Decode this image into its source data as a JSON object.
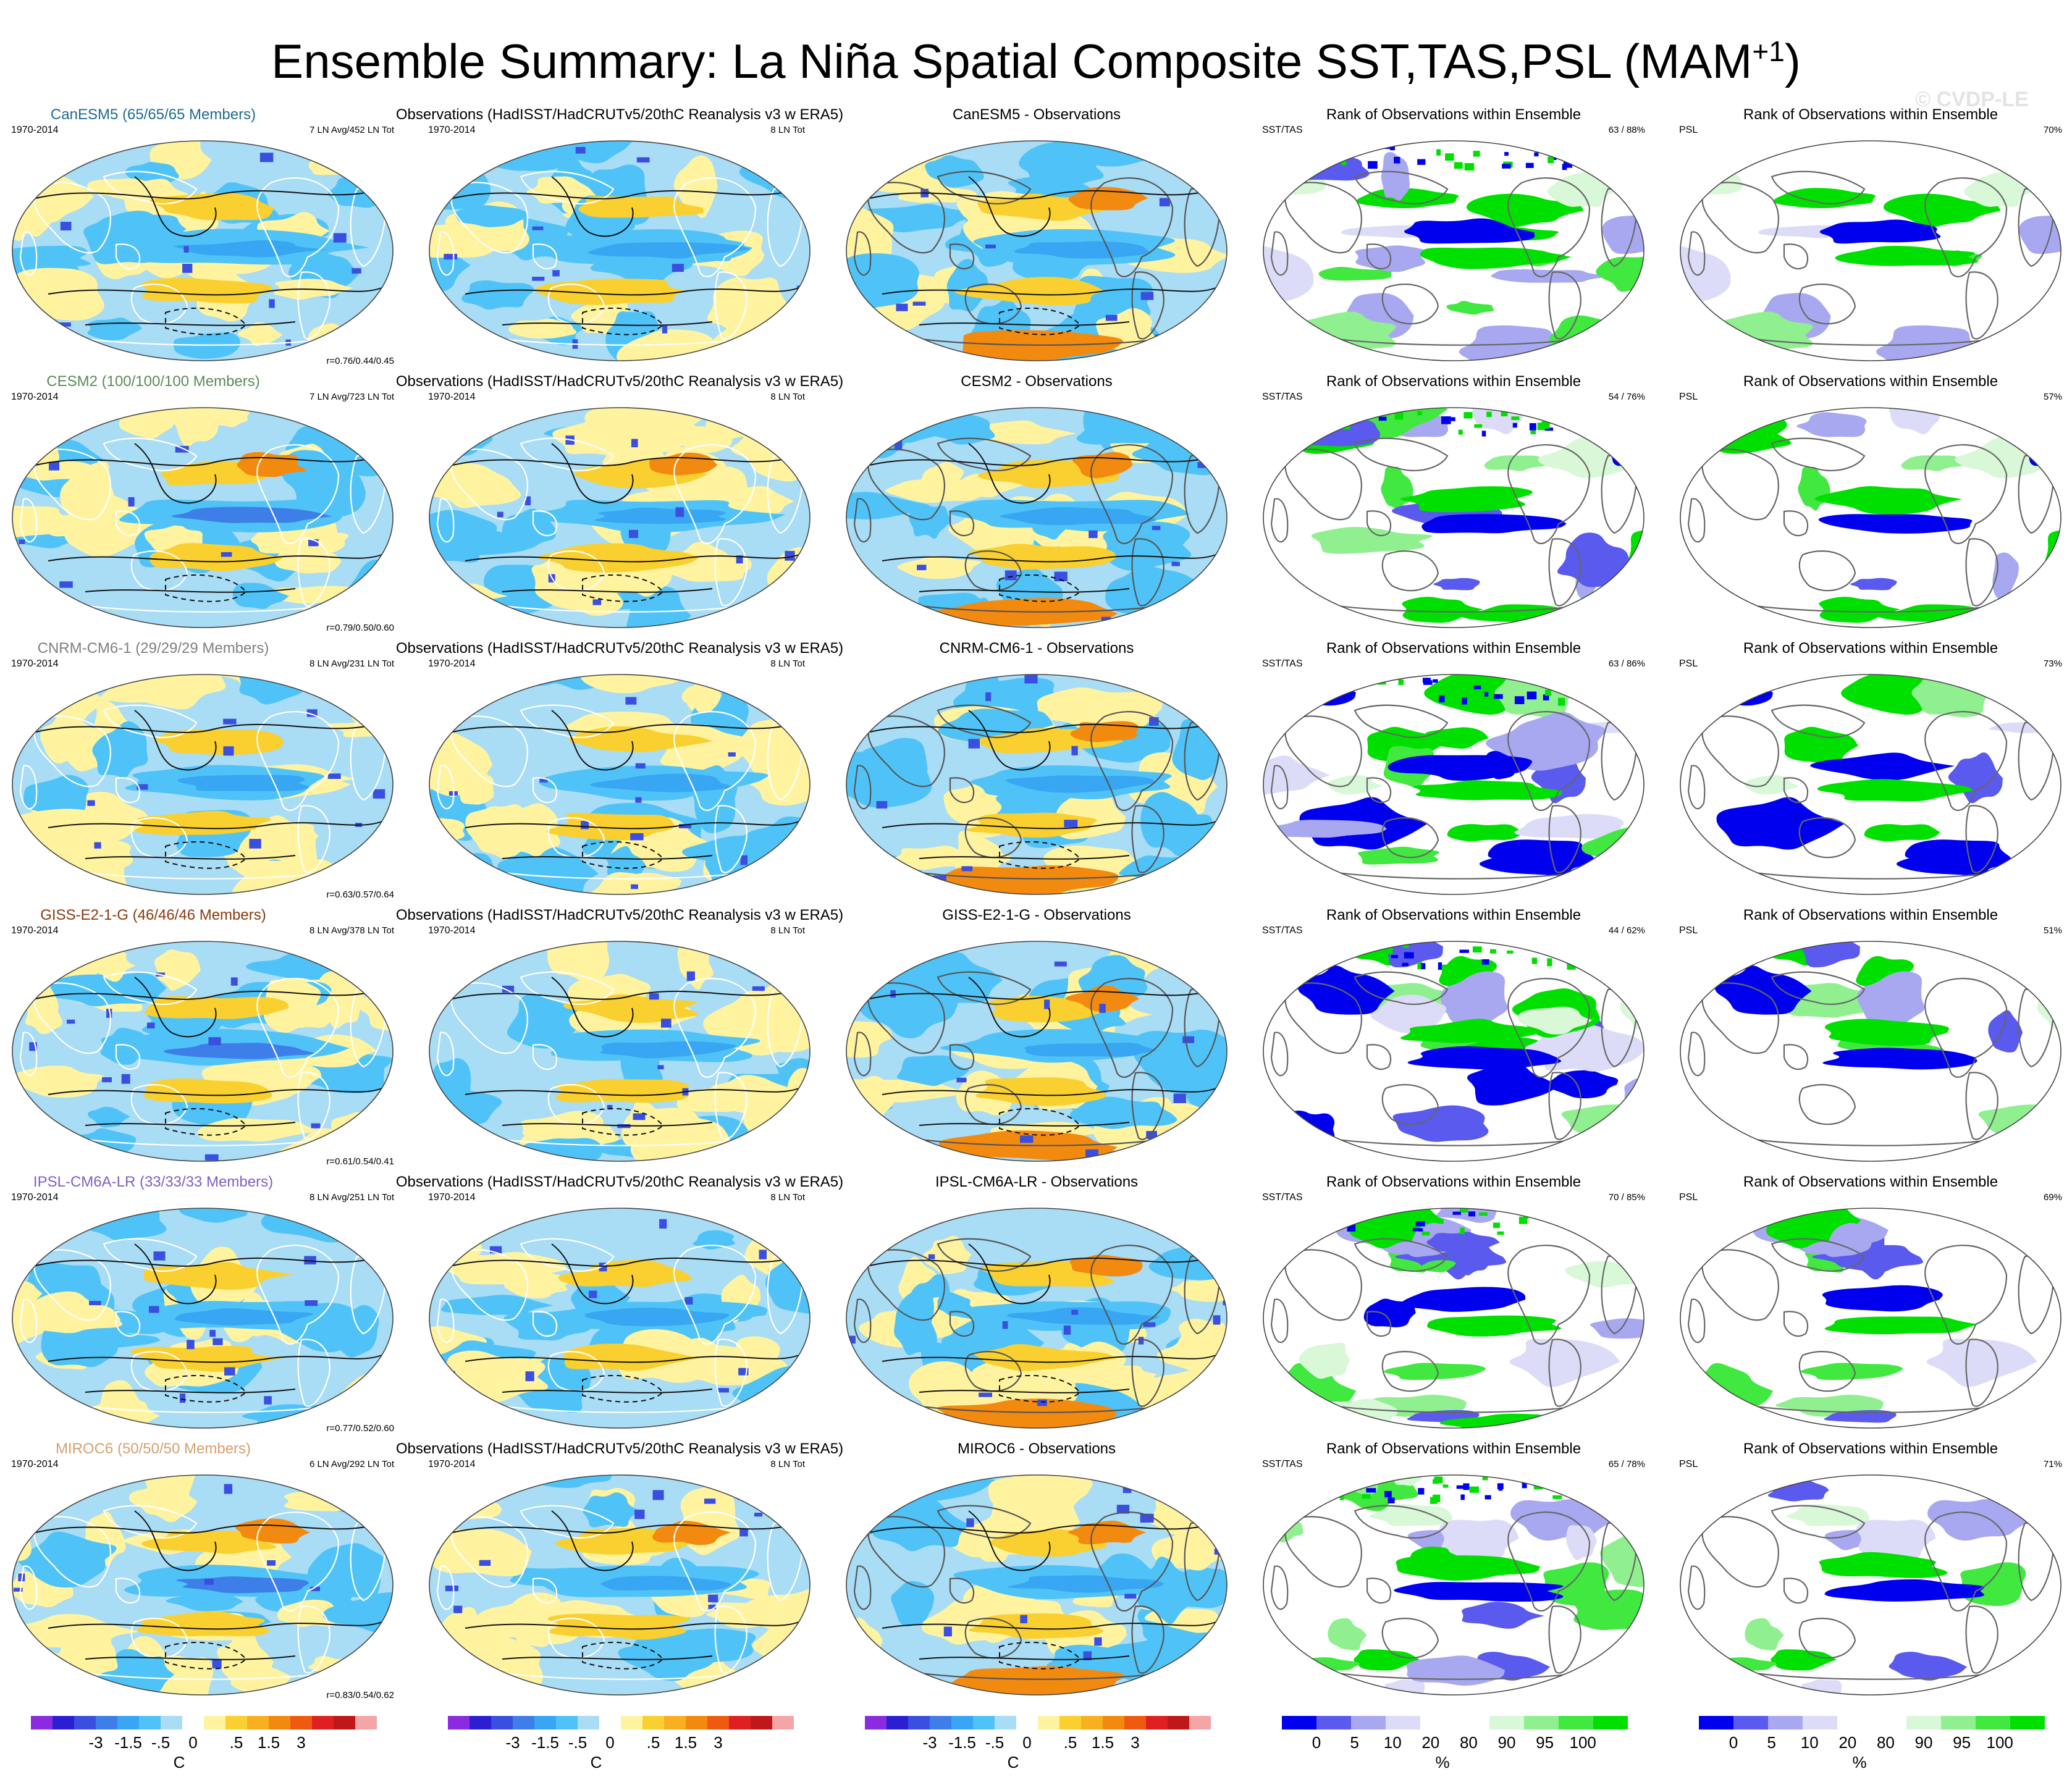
{
  "title": "Ensemble Summary: La Niña Spatial Composite SST,TAS,PSL (MAM",
  "title_sup": "+1",
  "title_close": ")",
  "watermark": "© CVDP-LE",
  "obs_title": "Observations (HadISST/HadCRUTv5/20thC Reanalysis v3 w ERA5)",
  "rank_title": "Rank of Observations within Ensemble",
  "period": "1970-2014",
  "obs_count": "8 LN Tot",
  "sst_label": "SST/TAS",
  "psl_label": "PSL",
  "models": [
    {
      "name": "CanESM5 (65/65/65 Members)",
      "short": "CanESM5",
      "color": "#1f6b8f",
      "stats": "7 LN Avg/452 LN Tot",
      "corr": "r=0.76/0.44/0.45",
      "diff": "CanESM5 - Observations",
      "rank_sst": "63 /  88%",
      "rank_psl": "70%"
    },
    {
      "name": "CESM2 (100/100/100 Members)",
      "short": "CESM2",
      "color": "#5a8a5a",
      "stats": "7 LN Avg/723 LN Tot",
      "corr": "r=0.79/0.50/0.60",
      "diff": "CESM2 - Observations",
      "rank_sst": "54 /  76%",
      "rank_psl": "57%"
    },
    {
      "name": "CNRM-CM6-1 (29/29/29 Members)",
      "short": "CNRM-CM6-1",
      "color": "#808080",
      "stats": "8 LN Avg/231 LN Tot",
      "corr": "r=0.63/0.57/0.64",
      "diff": "CNRM-CM6-1 - Observations",
      "rank_sst": "63 /  86%",
      "rank_psl": "73%"
    },
    {
      "name": "GISS-E2-1-G (46/46/46 Members)",
      "short": "GISS-E2-1-G",
      "color": "#8b3a0f",
      "stats": "8 LN Avg/378 LN Tot",
      "corr": "r=0.61/0.54/0.41",
      "diff": "GISS-E2-1-G - Observations",
      "rank_sst": "44 /  62%",
      "rank_psl": "51%"
    },
    {
      "name": "IPSL-CM6A-LR (33/33/33 Members)",
      "short": "IPSL-CM6A-LR",
      "color": "#8060c0",
      "stats": "8 LN Avg/251 LN Tot",
      "corr": "r=0.77/0.52/0.60",
      "diff": "IPSL-CM6A-LR - Observations",
      "rank_sst": "70 /  85%",
      "rank_psl": "69%"
    },
    {
      "name": "MIROC6 (50/50/50 Members)",
      "short": "MIROC6",
      "color": "#d4a070",
      "stats": "6 LN Avg/292 LN Tot",
      "corr": "r=0.83/0.54/0.62",
      "diff": "MIROC6 - Observations",
      "rank_sst": "65 /  78%",
      "rank_psl": "71%"
    }
  ],
  "colorbar_temp": {
    "colors": [
      "#8a2be2",
      "#2b1fd1",
      "#3a4fe0",
      "#3d7ee8",
      "#38a6f2",
      "#4fc3f7",
      "#a9dcf5",
      "#ffffff",
      "#fff3a0",
      "#f9d030",
      "#f8b020",
      "#f38a10",
      "#ee5a10",
      "#e02020",
      "#c01818",
      "#f4a6a6"
    ],
    "ticks": [
      "-3",
      "-1.5",
      "-.5",
      "0",
      ".5",
      "1.5",
      "3"
    ],
    "label": "C"
  },
  "colorbar_rank": {
    "colors": [
      "#0000ee",
      "#5a5aee",
      "#a8a8f0",
      "#dcdcf8",
      "#ffffff",
      "#ffffff",
      "#d8f8d8",
      "#90f090",
      "#40e840",
      "#00e000"
    ],
    "ticks": [
      "0",
      "5",
      "10",
      "20",
      "80",
      "90",
      "95",
      "100"
    ],
    "label": "%"
  }
}
